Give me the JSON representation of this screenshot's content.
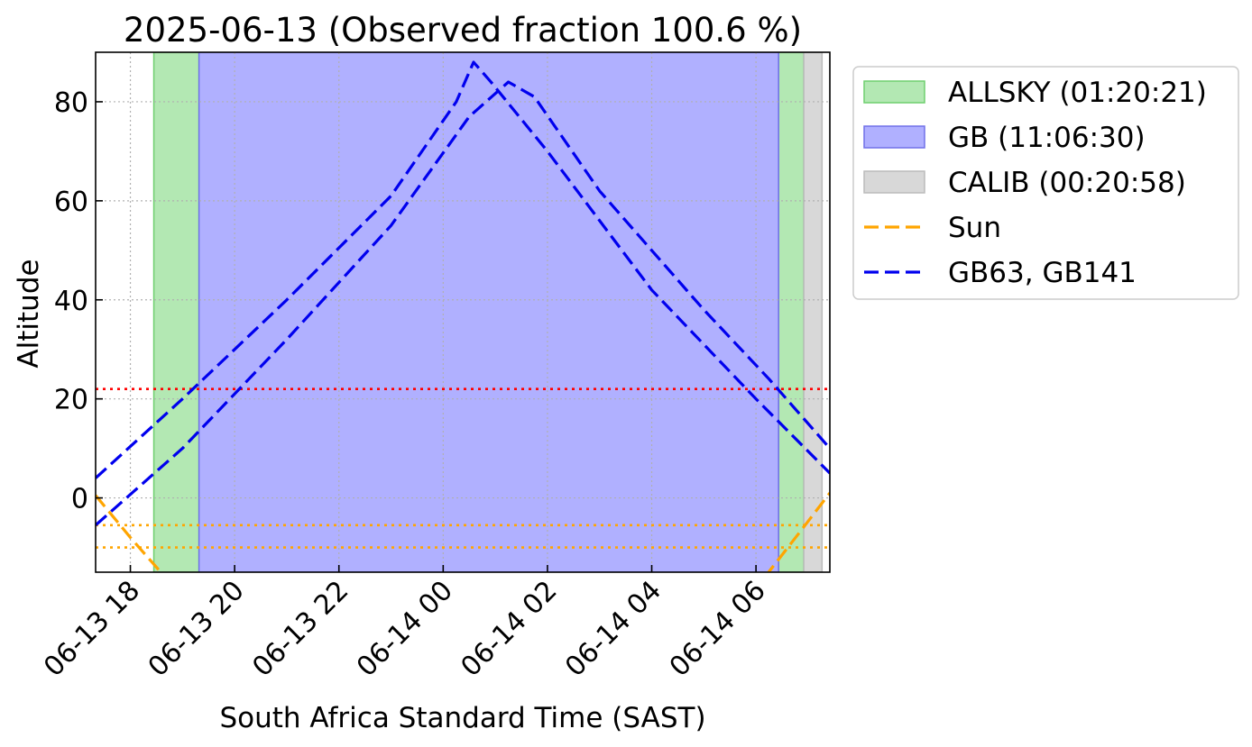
{
  "chart_data": {
    "type": "line",
    "title": "2025-06-13 (Observed fraction 100.6 %)",
    "xlabel": "South Africa Standard Time (SAST)",
    "ylabel": "Altitude",
    "x_unit": "datetime (SAST)",
    "xlim": [
      "2025-06-13 17:20",
      "2025-06-14 07:25"
    ],
    "ylim": [
      -15,
      90
    ],
    "x_ticks": [
      {
        "value": "2025-06-13 18:00",
        "label": "06-13 18"
      },
      {
        "value": "2025-06-13 20:00",
        "label": "06-13 20"
      },
      {
        "value": "2025-06-13 22:00",
        "label": "06-13 22"
      },
      {
        "value": "2025-06-14 00:00",
        "label": "06-14 00"
      },
      {
        "value": "2025-06-14 02:00",
        "label": "06-14 02"
      },
      {
        "value": "2025-06-14 04:00",
        "label": "06-14 04"
      },
      {
        "value": "2025-06-14 06:00",
        "label": "06-14 06"
      }
    ],
    "y_ticks": [
      0,
      20,
      40,
      60,
      80
    ],
    "grid": true,
    "legend_position": "outside-right",
    "spans": [
      {
        "legend": "ALLSKY (01:20:21)",
        "color": "#b3e8b3",
        "edge": "#6fcf6f",
        "intervals": [
          [
            "2025-06-13 18:27",
            "2025-06-13 19:19"
          ],
          [
            "2025-06-14 06:26",
            "2025-06-14 06:55"
          ]
        ]
      },
      {
        "legend": "GB (11:06:30)",
        "color": "#b0b0ff",
        "edge": "#7070e8",
        "intervals": [
          [
            "2025-06-13 19:19",
            "2025-06-14 06:26"
          ]
        ]
      },
      {
        "legend": "CALIB (00:20:58)",
        "color": "#d8d8d8",
        "edge": "#bbbbbb",
        "intervals": [
          [
            "2025-06-14 06:55",
            "2025-06-14 07:16"
          ]
        ]
      }
    ],
    "series": [
      {
        "name": "Sun",
        "legend": "Sun",
        "color": "#ffa500",
        "style": "dashed",
        "segments": [
          [
            [
              "2025-06-13 17:20",
              0.5
            ],
            [
              "2025-06-13 18:00",
              -8
            ],
            [
              "2025-06-13 18:40",
              -16
            ]
          ],
          [
            [
              "2025-06-14 06:10",
              -16
            ],
            [
              "2025-06-14 06:50",
              -7
            ],
            [
              "2025-06-14 07:25",
              1
            ]
          ]
        ]
      },
      {
        "name": "GB63",
        "color": "#0000ee",
        "style": "dashed",
        "points": [
          [
            "2025-06-13 17:20",
            4
          ],
          [
            "2025-06-13 19:00",
            20
          ],
          [
            "2025-06-13 21:00",
            40
          ],
          [
            "2025-06-13 23:00",
            61
          ],
          [
            "2025-06-14 00:15",
            80
          ],
          [
            "2025-06-14 00:35",
            88
          ],
          [
            "2025-06-14 00:55",
            84
          ],
          [
            "2025-06-14 02:00",
            70
          ],
          [
            "2025-06-14 04:00",
            42
          ],
          [
            "2025-06-14 06:00",
            20
          ],
          [
            "2025-06-14 07:25",
            5
          ]
        ]
      },
      {
        "name": "GB141",
        "color": "#0000ee",
        "style": "dashed",
        "points": [
          [
            "2025-06-13 17:20",
            -5.5
          ],
          [
            "2025-06-13 19:00",
            10
          ],
          [
            "2025-06-13 21:00",
            32
          ],
          [
            "2025-06-13 23:00",
            55
          ],
          [
            "2025-06-14 00:30",
            77
          ],
          [
            "2025-06-14 01:15",
            84
          ],
          [
            "2025-06-14 01:45",
            81
          ],
          [
            "2025-06-14 03:00",
            62
          ],
          [
            "2025-06-14 05:00",
            38
          ],
          [
            "2025-06-14 06:15",
            24
          ],
          [
            "2025-06-14 07:25",
            10
          ]
        ]
      }
    ],
    "legend_line": {
      "label": "GB63, GB141",
      "color": "#0000ee",
      "style": "dashed"
    },
    "hlines": [
      {
        "y": 22,
        "color": "#ff0000",
        "style": "dotted"
      },
      {
        "y": -5.5,
        "color": "#ffa500",
        "style": "dotted"
      },
      {
        "y": -10,
        "color": "#ffa500",
        "style": "dotted"
      }
    ]
  }
}
